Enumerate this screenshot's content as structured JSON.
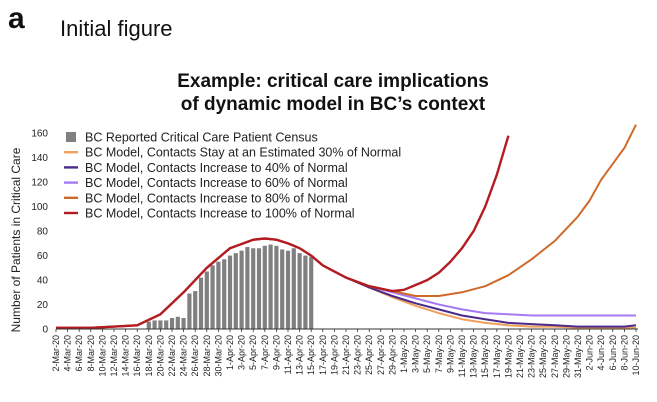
{
  "panel": {
    "letter": "a",
    "title": "Initial figure"
  },
  "chart_data": {
    "type": "line",
    "title_lines": [
      "Example: critical care implications",
      "of dynamic model in BC’s context"
    ],
    "xlabel": "",
    "ylabel": "Number of Patients in Critical Care",
    "ylim": [
      0,
      170
    ],
    "yticks": [
      0,
      20,
      40,
      60,
      80,
      100,
      120,
      140,
      160
    ],
    "x_tick_labels": [
      "2-Mar-20",
      "4-Mar-20",
      "6-Mar-20",
      "8-Mar-20",
      "10-Mar-20",
      "12-Mar-20",
      "14-Mar-20",
      "16-Mar-20",
      "18-Mar-20",
      "20-Mar-20",
      "22-Mar-20",
      "24-Mar-20",
      "26-Mar-20",
      "28-Mar-20",
      "30-Mar-20",
      "1-Apr-20",
      "3-Apr-20",
      "5-Apr-20",
      "7-Apr-20",
      "9-Apr-20",
      "11-Apr-20",
      "13-Apr-20",
      "15-Apr-20",
      "17-Apr-20",
      "19-Apr-20",
      "21-Apr-20",
      "23-Apr-20",
      "25-Apr-20",
      "27-Apr-20",
      "29-Apr-20",
      "1-May-20",
      "3-May-20",
      "5-May-20",
      "7-May-20",
      "9-May-20",
      "11-May-20",
      "13-May-20",
      "15-May-20",
      "17-May-20",
      "19-May-20",
      "21-May-20",
      "23-May-20",
      "25-May-20",
      "27-May-20",
      "29-May-20",
      "31-May-20",
      "2-Jun-20",
      "4-Jun-20",
      "6-Jun-20",
      "8-Jun-20",
      "10-Jun-20"
    ],
    "x_range_days": [
      0,
      100
    ],
    "grid": false,
    "legend_position": "top-left",
    "bars": {
      "name": "BC Reported Critical Care Patient Census",
      "color": "#808080",
      "x": [
        16,
        17,
        18,
        19,
        20,
        21,
        22,
        23,
        24,
        25,
        26,
        27,
        28,
        29,
        30,
        31,
        32,
        33,
        34,
        35,
        36,
        37,
        38,
        39,
        40,
        41,
        42,
        43,
        44
      ],
      "values": [
        6,
        7,
        7,
        7,
        9,
        10,
        9,
        29,
        31,
        42,
        47,
        52,
        55,
        57,
        60,
        62,
        64,
        67,
        66,
        66,
        68,
        69,
        68,
        65,
        64,
        66,
        62,
        60,
        59
      ]
    },
    "series": [
      {
        "name": "BC Model, Contacts Stay at an Estimated 30% of Normal",
        "color": "#f0a05a",
        "x": [
          0,
          6,
          10,
          14,
          18,
          22,
          26,
          30,
          34,
          36,
          38,
          40,
          42,
          44,
          46,
          50,
          54,
          58,
          62,
          66,
          70,
          74,
          78,
          82,
          86,
          90,
          94,
          98,
          100
        ],
        "values": [
          1,
          1,
          2,
          3,
          12,
          30,
          50,
          66,
          73,
          74,
          73,
          70,
          66,
          60,
          52,
          42,
          34,
          26,
          19,
          13,
          8,
          5,
          3,
          2,
          2,
          1,
          1,
          1,
          1
        ]
      },
      {
        "name": "BC Model, Contacts Increase to 40% of Normal",
        "color": "#4b2a8a",
        "x": [
          0,
          6,
          10,
          14,
          18,
          22,
          26,
          30,
          34,
          36,
          38,
          40,
          42,
          44,
          46,
          50,
          54,
          58,
          62,
          66,
          70,
          74,
          78,
          82,
          86,
          90,
          94,
          98,
          100
        ],
        "values": [
          1,
          1,
          2,
          3,
          12,
          30,
          50,
          66,
          73,
          74,
          73,
          70,
          66,
          60,
          52,
          42,
          34,
          27,
          21,
          16,
          11,
          8,
          5,
          4,
          3,
          2,
          2,
          2,
          3
        ]
      },
      {
        "name": "BC Model, Contacts Increase to 60% of Normal",
        "color": "#a67af0",
        "x": [
          0,
          6,
          10,
          14,
          18,
          22,
          26,
          30,
          34,
          36,
          38,
          40,
          42,
          44,
          46,
          50,
          54,
          58,
          62,
          66,
          70,
          74,
          78,
          82,
          86,
          90,
          94,
          98,
          100
        ],
        "values": [
          1,
          1,
          2,
          3,
          12,
          30,
          50,
          66,
          73,
          74,
          73,
          70,
          66,
          60,
          52,
          42,
          35,
          30,
          25,
          20,
          16,
          13,
          12,
          11,
          11,
          11,
          11,
          11,
          11
        ]
      },
      {
        "name": "BC Model, Contacts Increase to 80% of Normal",
        "color": "#cf6a2a",
        "x": [
          0,
          6,
          10,
          14,
          18,
          22,
          26,
          30,
          34,
          36,
          38,
          40,
          42,
          44,
          46,
          50,
          54,
          58,
          62,
          66,
          70,
          74,
          78,
          82,
          86,
          88,
          90,
          92,
          94,
          96,
          98,
          100
        ],
        "values": [
          1,
          1,
          2,
          3,
          12,
          30,
          50,
          66,
          73,
          74,
          73,
          70,
          66,
          60,
          52,
          42,
          35,
          31,
          27,
          27,
          30,
          35,
          44,
          57,
          72,
          82,
          92,
          105,
          122,
          135,
          148,
          167
        ]
      },
      {
        "name": "BC Model, Contacts Increase to 100% of Normal",
        "color": "#b41c22",
        "x": [
          0,
          6,
          10,
          14,
          18,
          22,
          26,
          30,
          34,
          36,
          38,
          40,
          42,
          44,
          46,
          50,
          54,
          58,
          60,
          62,
          64,
          66,
          68,
          70,
          72,
          74,
          76,
          78
        ],
        "values": [
          1,
          1,
          2,
          3,
          12,
          30,
          50,
          66,
          73,
          74,
          73,
          70,
          66,
          60,
          52,
          42,
          35,
          31,
          32,
          36,
          40,
          46,
          55,
          66,
          80,
          100,
          126,
          158
        ]
      }
    ]
  }
}
